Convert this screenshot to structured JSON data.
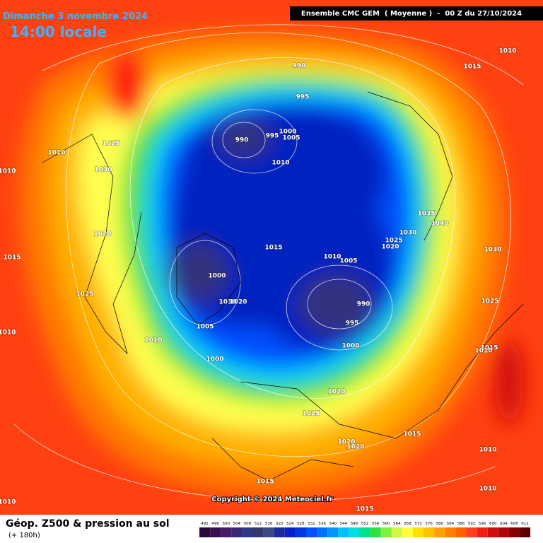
{
  "header": {
    "date": "Dimanche 3 novembre 2024",
    "time": "14:00 locale",
    "model": "Ensemble CMC GEM  ( Moyenne )  -  00 Z du 27/10/2024"
  },
  "map": {
    "isobar_labels": [
      "990",
      "995",
      "990",
      "995",
      "1000",
      "1005",
      "1010",
      "1015",
      "1010",
      "1005",
      "990",
      "995",
      "1000",
      "1020",
      "1025",
      "1020",
      "1020",
      "1015",
      "1015",
      "1015",
      "1000",
      "1010",
      "1020",
      "1005",
      "1010",
      "1000",
      "1010",
      "1025",
      "1030",
      "1020",
      "1025",
      "1015",
      "1010",
      "1010",
      "1010",
      "1035",
      "1040",
      "1030",
      "1025",
      "1020",
      "1030",
      "1025",
      "1015",
      "1010",
      "1010",
      "1010",
      "1010",
      "1015"
    ],
    "copyright": "Copyright © 2024 Meteociel.fr"
  },
  "footer": {
    "title": "Géop. Z500 & pression au sol",
    "lead": "(+ 180h)"
  },
  "scale": {
    "labels": [
      "492",
      "496",
      "500",
      "504",
      "508",
      "512",
      "516",
      "520",
      "524",
      "528",
      "532",
      "536",
      "540",
      "544",
      "548",
      "552",
      "556",
      "560",
      "564",
      "568",
      "572",
      "576",
      "580",
      "584",
      "588",
      "592",
      "596",
      "600",
      "604",
      "608",
      "612"
    ],
    "colors": [
      "#2a0a3a",
      "#3a0f52",
      "#4a1a6a",
      "#3a2878",
      "#2c3a8a",
      "#34386e",
      "#3c4a86",
      "#1c2aa0",
      "#0a20c8",
      "#0038e0",
      "#0050ff",
      "#0070ff",
      "#0098ff",
      "#00c0ff",
      "#00e0e0",
      "#00e090",
      "#30e040",
      "#80f040",
      "#d0f840",
      "#ffff40",
      "#ffe000",
      "#ffc000",
      "#ffa000",
      "#ff8000",
      "#ff6000",
      "#ff4020",
      "#f02010",
      "#d01010",
      "#b00808",
      "#880404",
      "#600000"
    ]
  }
}
